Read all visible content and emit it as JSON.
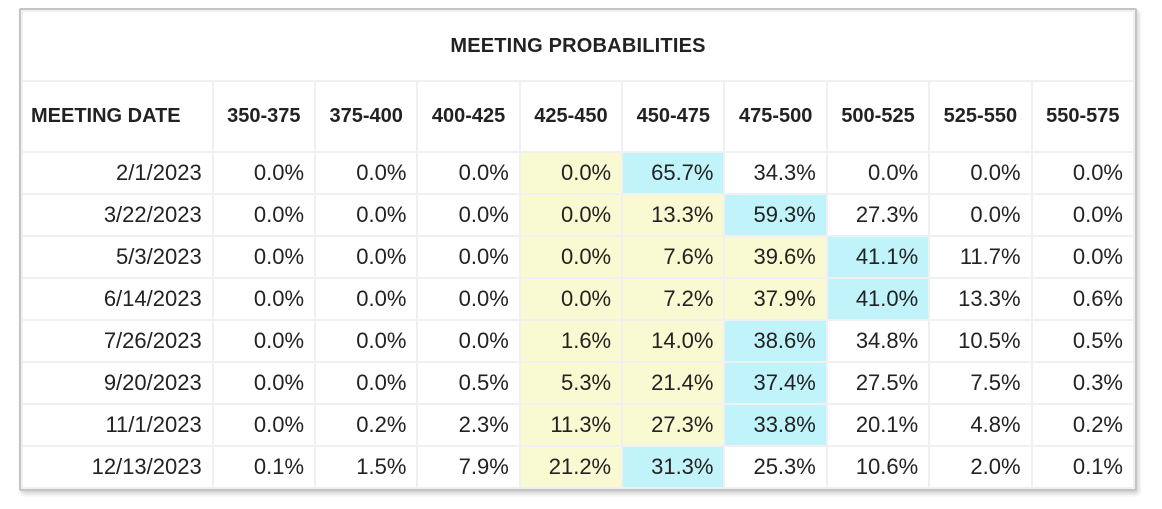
{
  "table": {
    "title": "MEETING PROBABILITIES",
    "date_header": "MEETING DATE",
    "columns": [
      "350-375",
      "375-400",
      "400-425",
      "425-450",
      "450-475",
      "475-500",
      "500-525",
      "525-550",
      "550-575"
    ],
    "rows": [
      {
        "date": "2/1/2023",
        "values": [
          "0.0%",
          "0.0%",
          "0.0%",
          "0.0%",
          "65.7%",
          "34.3%",
          "0.0%",
          "0.0%",
          "0.0%"
        ],
        "highlights": [
          "",
          "",
          "",
          "yellow",
          "cyan",
          "",
          "",
          "",
          ""
        ]
      },
      {
        "date": "3/22/2023",
        "values": [
          "0.0%",
          "0.0%",
          "0.0%",
          "0.0%",
          "13.3%",
          "59.3%",
          "27.3%",
          "0.0%",
          "0.0%"
        ],
        "highlights": [
          "",
          "",
          "",
          "yellow",
          "yellow",
          "cyan",
          "",
          "",
          ""
        ]
      },
      {
        "date": "5/3/2023",
        "values": [
          "0.0%",
          "0.0%",
          "0.0%",
          "0.0%",
          "7.6%",
          "39.6%",
          "41.1%",
          "11.7%",
          "0.0%"
        ],
        "highlights": [
          "",
          "",
          "",
          "yellow",
          "yellow",
          "yellow",
          "cyan",
          "",
          ""
        ]
      },
      {
        "date": "6/14/2023",
        "values": [
          "0.0%",
          "0.0%",
          "0.0%",
          "0.0%",
          "7.2%",
          "37.9%",
          "41.0%",
          "13.3%",
          "0.6%"
        ],
        "highlights": [
          "",
          "",
          "",
          "yellow",
          "yellow",
          "yellow",
          "cyan",
          "",
          ""
        ]
      },
      {
        "date": "7/26/2023",
        "values": [
          "0.0%",
          "0.0%",
          "0.0%",
          "1.6%",
          "14.0%",
          "38.6%",
          "34.8%",
          "10.5%",
          "0.5%"
        ],
        "highlights": [
          "",
          "",
          "",
          "yellow",
          "yellow",
          "cyan",
          "",
          "",
          ""
        ]
      },
      {
        "date": "9/20/2023",
        "values": [
          "0.0%",
          "0.0%",
          "0.5%",
          "5.3%",
          "21.4%",
          "37.4%",
          "27.5%",
          "7.5%",
          "0.3%"
        ],
        "highlights": [
          "",
          "",
          "",
          "yellow",
          "yellow",
          "cyan",
          "",
          "",
          ""
        ]
      },
      {
        "date": "11/1/2023",
        "values": [
          "0.0%",
          "0.2%",
          "2.3%",
          "11.3%",
          "27.3%",
          "33.8%",
          "20.1%",
          "4.8%",
          "0.2%"
        ],
        "highlights": [
          "",
          "",
          "",
          "yellow",
          "yellow",
          "cyan",
          "",
          "",
          ""
        ]
      },
      {
        "date": "12/13/2023",
        "values": [
          "0.1%",
          "1.5%",
          "7.9%",
          "21.2%",
          "31.3%",
          "25.3%",
          "10.6%",
          "2.0%",
          "0.1%"
        ],
        "highlights": [
          "",
          "",
          "",
          "yellow",
          "cyan",
          "",
          "",
          "",
          ""
        ]
      }
    ]
  },
  "colors": {
    "yellow": "#fafad2",
    "cyan": "#c0f4fa",
    "grid": "#f0f0f0",
    "border": "#c4c4c4"
  }
}
